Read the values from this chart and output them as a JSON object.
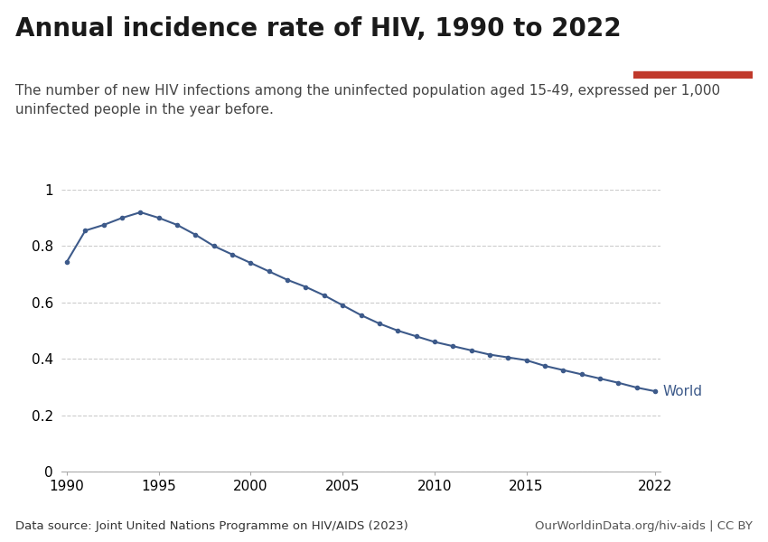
{
  "title": "Annual incidence rate of HIV, 1990 to 2022",
  "subtitle_line1": "The number of new HIV infections among the uninfected population aged 15-49, expressed per 1,000",
  "subtitle_line2": "uninfected people in the year before.",
  "datasource_left": "Data source: Joint United Nations Programme on HIV/AIDS (2023)",
  "datasource_right": "OurWorldinData.org/hiv-aids | CC BY",
  "line_color": "#3d5a8a",
  "line_label": "World",
  "years": [
    1990,
    1991,
    1992,
    1993,
    1994,
    1995,
    1996,
    1997,
    1998,
    1999,
    2000,
    2001,
    2002,
    2003,
    2004,
    2005,
    2006,
    2007,
    2008,
    2009,
    2010,
    2011,
    2012,
    2013,
    2014,
    2015,
    2016,
    2017,
    2018,
    2019,
    2020,
    2021,
    2022
  ],
  "values": [
    0.745,
    0.855,
    0.875,
    0.9,
    0.92,
    0.9,
    0.875,
    0.84,
    0.8,
    0.77,
    0.74,
    0.71,
    0.68,
    0.655,
    0.625,
    0.59,
    0.555,
    0.525,
    0.5,
    0.48,
    0.46,
    0.445,
    0.43,
    0.415,
    0.405,
    0.395,
    0.375,
    0.36,
    0.345,
    0.33,
    0.315,
    0.298,
    0.285
  ],
  "xlim": [
    1990,
    2022
  ],
  "ylim": [
    0,
    1.0
  ],
  "yticks": [
    0,
    0.2,
    0.4,
    0.6,
    0.8,
    1.0
  ],
  "xticks": [
    1990,
    1995,
    2000,
    2005,
    2010,
    2015,
    2022
  ],
  "background_color": "#ffffff",
  "grid_color": "#cccccc",
  "owid_box_bg": "#1a3a5c",
  "owid_box_red": "#c0392b",
  "owid_text_color": "#ffffff",
  "title_fontsize": 20,
  "subtitle_fontsize": 11,
  "tick_fontsize": 11,
  "label_fontsize": 11,
  "source_fontsize": 9.5
}
